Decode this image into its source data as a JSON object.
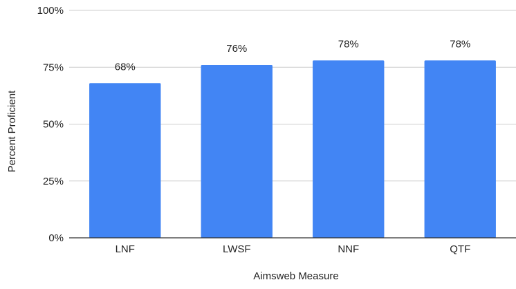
{
  "chart_data": {
    "type": "bar",
    "title": "",
    "categories": [
      "LNF",
      "LWSF",
      "NNF",
      "QTF"
    ],
    "values": [
      68,
      76,
      78,
      78
    ],
    "data_labels": [
      "68%",
      "76%",
      "78%",
      "78%"
    ],
    "xlabel": "Aimsweb Measure",
    "ylabel": "Percent Proficient",
    "ylim": [
      0,
      100
    ],
    "yticks": [
      0,
      25,
      50,
      75,
      100
    ],
    "ytick_labels": [
      "0%",
      "25%",
      "50%",
      "75%",
      "100%"
    ],
    "grid": true,
    "legend": "none",
    "bar_color": "#4285f4"
  }
}
